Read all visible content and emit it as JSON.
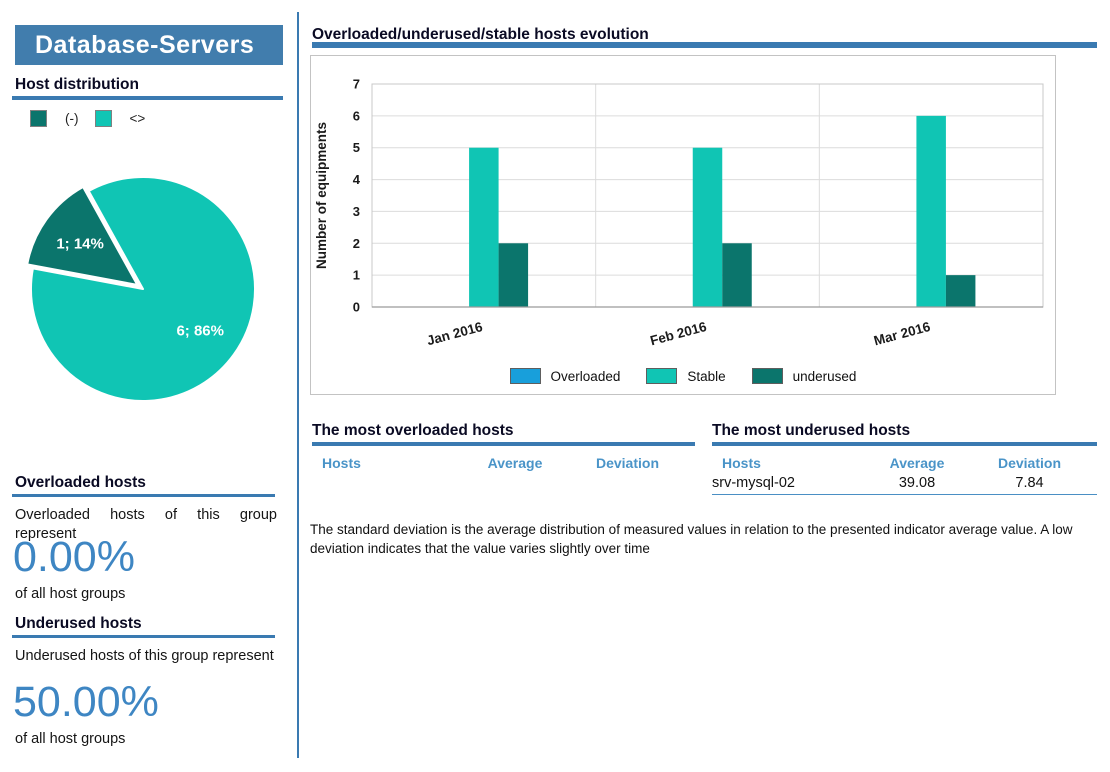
{
  "left_panel": {
    "title": "Database-Servers",
    "host_distribution_heading": "Host distribution",
    "overloaded": {
      "heading": "Overloaded hosts",
      "description": "Overloaded hosts of this group represent",
      "percent": "0.00%",
      "suffix": "of all host groups"
    },
    "underused": {
      "heading": "Underused hosts",
      "description": "Underused hosts of this group represent",
      "percent": "50.00%",
      "suffix": "of all host groups"
    }
  },
  "chart_data": [
    {
      "type": "pie",
      "title": "Host distribution",
      "legend_position": "top",
      "slices": [
        {
          "label": "(-)",
          "value": 1,
          "pct": 14,
          "data_label": "1; 14%",
          "color": "#0b756c"
        },
        {
          "label": "<>",
          "value": 6,
          "pct": 86,
          "data_label": "6; 86%",
          "color": "#10c5b4"
        }
      ]
    },
    {
      "type": "bar",
      "title": "Overloaded/underused/stable hosts evolution",
      "categories": [
        "Jan 2016",
        "Feb 2016",
        "Mar 2016"
      ],
      "series": [
        {
          "name": "Overloaded",
          "color": "#189fdb",
          "values": [
            0,
            0,
            0
          ]
        },
        {
          "name": "Stable",
          "color": "#10c5b4",
          "values": [
            5,
            5,
            6
          ]
        },
        {
          "name": "underused",
          "color": "#0b756c",
          "values": [
            2,
            2,
            1
          ]
        }
      ],
      "xlabel": "",
      "ylabel": "Number of equipments",
      "ylim": [
        0,
        7
      ],
      "yticks": [
        0,
        1,
        2,
        3,
        4,
        5,
        6,
        7
      ],
      "grid": true,
      "legend_position": "bottom"
    }
  ],
  "tables": {
    "overloaded": {
      "heading": "The most overloaded hosts",
      "columns": [
        "Hosts",
        "Average",
        "Deviation"
      ],
      "rows": []
    },
    "underused": {
      "heading": "The most underused hosts",
      "columns": [
        "Hosts",
        "Average",
        "Deviation"
      ],
      "rows": [
        [
          "srv-mysql-02",
          "39.08",
          "7.84"
        ]
      ]
    }
  },
  "footnote": "The standard deviation is the average distribution of measured values in relation to the presented indicator average value. A low  deviation indicates that the value varies slightly over time",
  "colors": {
    "accent_rule": "#3a7ab1",
    "title_bar_bg": "#417dad",
    "big_percent": "#3e86c3",
    "table_header": "#4a94c8",
    "overloaded": "#189fdb",
    "stable": "#10c5b4",
    "underused": "#0b756c"
  }
}
